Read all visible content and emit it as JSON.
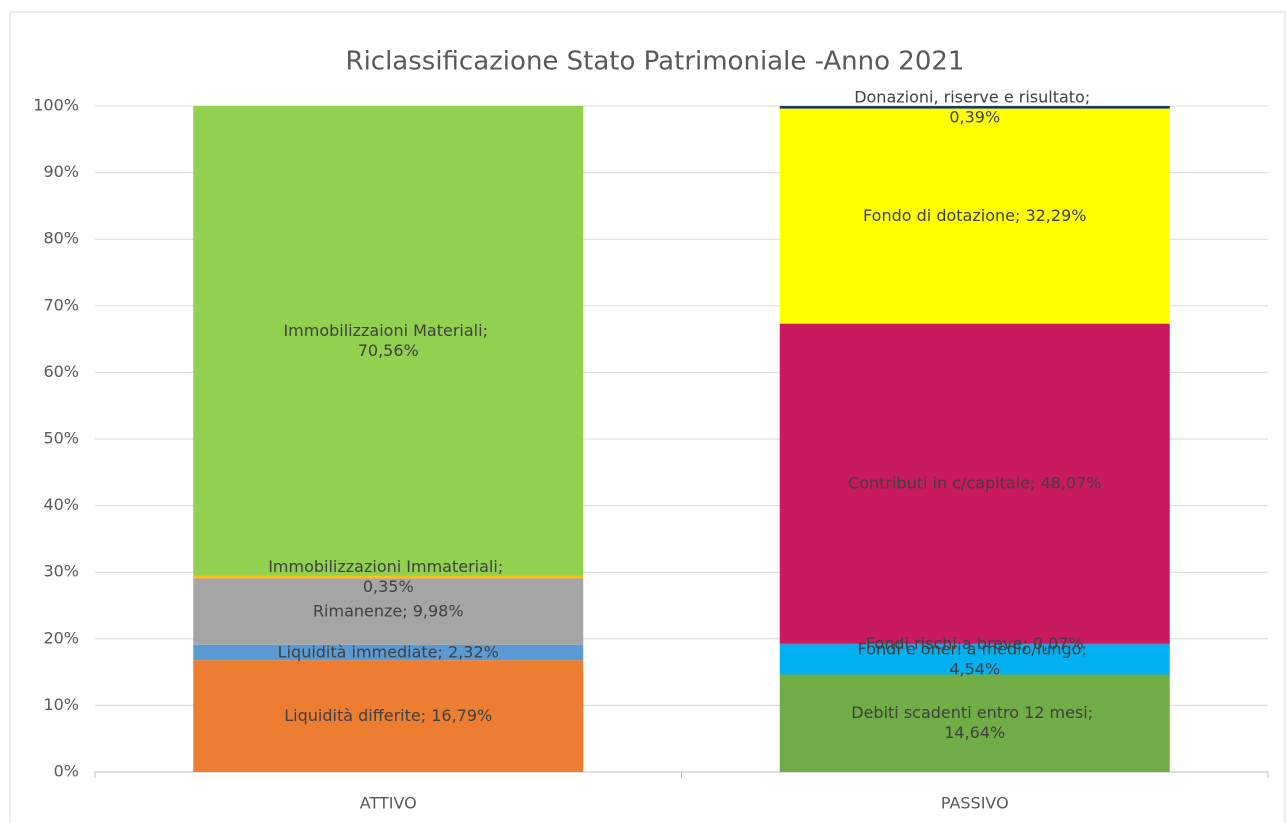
{
  "chart_data": {
    "type": "stacked_bar",
    "title": "Riclassificazione Stato Patrimoniale -Anno 2021",
    "categories": [
      "ATTIVO",
      "PASSIVO"
    ],
    "ylim": [
      0,
      100
    ],
    "yticks": [
      {
        "value": 0,
        "label": "0%"
      },
      {
        "value": 10,
        "label": "10%"
      },
      {
        "value": 20,
        "label": "20%"
      },
      {
        "value": 30,
        "label": "30%"
      },
      {
        "value": 40,
        "label": "40%"
      },
      {
        "value": 50,
        "label": "50%"
      },
      {
        "value": 60,
        "label": "60%"
      },
      {
        "value": 70,
        "label": "70%"
      },
      {
        "value": 80,
        "label": "80%"
      },
      {
        "value": 90,
        "label": "90%"
      },
      {
        "value": 100,
        "label": "100%"
      }
    ],
    "grid": true,
    "series": [
      {
        "color": "#ed7d31",
        "values": [
          16.79,
          null
        ],
        "value_labels": [
          "Liquidità differite; 16,79%",
          null
        ]
      },
      {
        "color": "#5b9bd5",
        "values": [
          2.32,
          null
        ],
        "value_labels": [
          "Liquidità immediate; 2,32%",
          null
        ]
      },
      {
        "color": "#a5a5a5",
        "values": [
          9.98,
          null
        ],
        "value_labels": [
          "Rimanenze; 9,98%",
          null
        ]
      },
      {
        "color": "#ffc000",
        "values": [
          0.35,
          null
        ],
        "value_labels": [
          "Immobilizzazioni Immateriali; 0,35%",
          null
        ]
      },
      {
        "color": "#92d050",
        "values": [
          70.56,
          null
        ],
        "value_labels": [
          "Immobilizzaioni Materiali; 70,56%",
          null
        ]
      },
      {
        "color": "#70ad47",
        "values": [
          null,
          14.64
        ],
        "value_labels": [
          null,
          "Debiti scadenti entro 12 mesi; 14,64%"
        ]
      },
      {
        "color": "#00b0f0",
        "values": [
          null,
          4.54
        ],
        "value_labels": [
          null,
          "Fondi e oneri a medio/lungo; 4,54%"
        ]
      },
      {
        "color": "#7030a0",
        "values": [
          null,
          0.07
        ],
        "value_labels": [
          null,
          "Fondi rischi a breve; 0,07%"
        ]
      },
      {
        "color": "#c9195f",
        "values": [
          null,
          48.07
        ],
        "value_labels": [
          null,
          "Contributi in c/capitale; 48,07%"
        ]
      },
      {
        "color": "#ffff00",
        "values": [
          null,
          32.29
        ],
        "value_labels": [
          null,
          "Fondo di dotazione; 32,29%"
        ]
      },
      {
        "color": "#1f3864",
        "values": [
          null,
          0.39
        ],
        "value_labels": [
          null,
          "Donazioni, riserve e risultato; 0,39%"
        ]
      }
    ]
  }
}
